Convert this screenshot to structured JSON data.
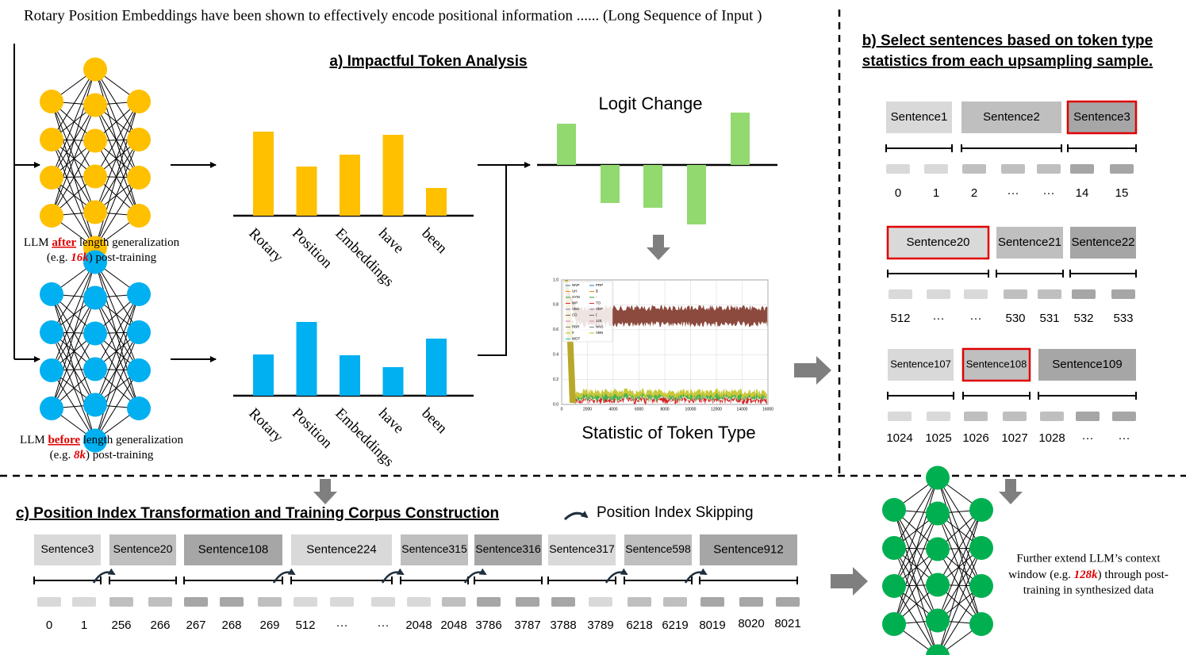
{
  "header": "Rotary Position Embeddings have been shown to effectively encode positional information ...... (Long Sequence of Input )",
  "section_a": {
    "title": "a) Impactful Token Analysis",
    "llm_after": {
      "prefix": "LLM ",
      "emphasis": "after",
      "suffix": " length generalization",
      "example_prefix": "(e.g. ",
      "example_value": "16k",
      "example_suffix": ") post-training"
    },
    "llm_before": {
      "prefix": "LLM ",
      "emphasis": "before",
      "suffix": " length generalization",
      "example_prefix": "(e.g. ",
      "example_value": "8k",
      "example_suffix": ") post-training"
    },
    "tokens_after": [
      "Rotary",
      "Position",
      "Embeddings",
      "have",
      "been"
    ],
    "tokens_before": [
      "Rotary",
      "Position",
      "Embeddings",
      "have",
      "been"
    ],
    "logit_title": "Logit Change",
    "stat_title": "Statistic of Token Type",
    "plot": {
      "yticks": [
        "0.0",
        "0.2",
        "0.4",
        "0.6",
        "0.8",
        "1.0"
      ],
      "xticks": [
        "0",
        "2000",
        "4000",
        "6000",
        "8000",
        "10000",
        "12000",
        "14000",
        "16000"
      ],
      "legend": [
        "NNP",
        "UH",
        "SYM",
        "WP",
        "VBG",
        "CD",
        ",",
        "RBR",
        "#",
        "WDT",
        "PRP",
        "$",
        ":",
        "TO",
        "VBP",
        "(",
        "JJS",
        "NNS",
        "VBN"
      ]
    }
  },
  "section_b": {
    "title_lines": [
      "b) Select sentences based on token type",
      "statistics from each upsampling sample."
    ],
    "groups": [
      {
        "sentences": [
          "Sentence1",
          "Sentence2",
          "Sentence3"
        ],
        "indices": [
          "0",
          "1",
          "2",
          "···",
          "···",
          "14",
          "15"
        ]
      },
      {
        "sentences": [
          "Sentence20",
          "Sentence21",
          "Sentence22"
        ],
        "indices": [
          "512",
          "···",
          "···",
          "530",
          "531",
          "532",
          "533"
        ]
      },
      {
        "sentences": [
          "Sentence107",
          "Sentence108",
          "Sentence109"
        ],
        "indices": [
          "1024",
          "1025",
          "1026",
          "1027",
          "1028",
          "···",
          "···"
        ]
      }
    ]
  },
  "section_c": {
    "title": "c) Position Index Transformation and Training Corpus Construction",
    "legend": "Position Index Skipping",
    "sentences": [
      "Sentence3",
      "Sentence20",
      "Sentence108",
      "Sentence224",
      "Sentence315",
      "Sentence316",
      "Sentence317",
      "Sentence598",
      "Sentence912"
    ],
    "indices": [
      "0",
      "1",
      "256",
      "266",
      "267",
      "268",
      "269",
      "512",
      "···",
      "···",
      "2048",
      "2048",
      "3786",
      "3787",
      "3788",
      "3789",
      "6218",
      "6219",
      "8019",
      "8020",
      "8021"
    ]
  },
  "final_text": {
    "line1": "Further extend LLM’s context",
    "line2_prefix": "window (e.g. ",
    "line2_value": "128k",
    "line2_suffix": ") through post-",
    "line3": "training in synthesized data"
  }
}
